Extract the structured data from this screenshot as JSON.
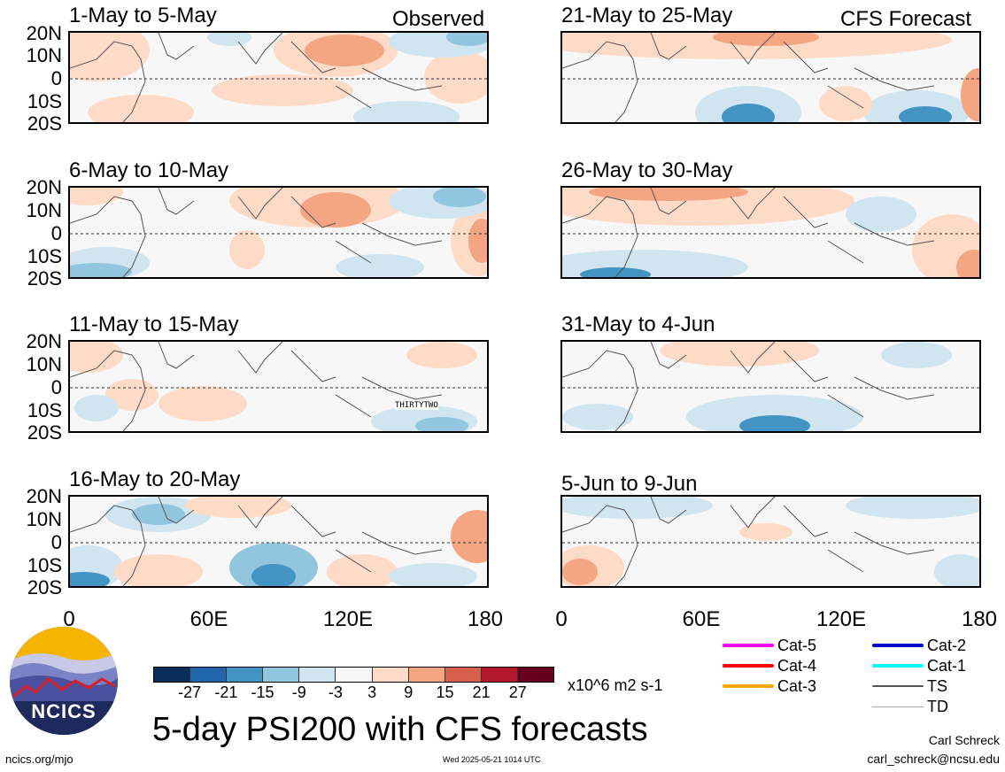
{
  "panels_left": [
    {
      "period": "1-May to 5-May",
      "label_right": "Observed"
    },
    {
      "period": "6-May to 10-May",
      "label_right": ""
    },
    {
      "period": "11-May to 15-May",
      "label_right": "",
      "annotation": "THIRTYTWO"
    },
    {
      "period": "16-May to 20-May",
      "label_right": ""
    }
  ],
  "panels_right": [
    {
      "period": "21-May to 25-May",
      "label_right": "CFS Forecast"
    },
    {
      "period": "26-May to 30-May",
      "label_right": ""
    },
    {
      "period": "31-May to 4-Jun",
      "label_right": ""
    },
    {
      "period": "5-Jun to 9-Jun",
      "label_right": ""
    }
  ],
  "lat_labels": [
    "20N",
    "10N",
    "0",
    "10S",
    "20S"
  ],
  "lon_labels": [
    "0",
    "60E",
    "120E",
    "180"
  ],
  "colorbar": {
    "ticks": [
      "-27",
      "-21",
      "-15",
      "-9",
      "-3",
      "3",
      "9",
      "15",
      "21",
      "27"
    ],
    "colors": [
      "#0b2e5a",
      "#2166ac",
      "#4393c3",
      "#92c5de",
      "#d1e5f0",
      "#f7f7f7",
      "#fddbc7",
      "#f4a582",
      "#d6604d",
      "#b2182b",
      "#67001f"
    ],
    "units": "x10^6 m2 s-1"
  },
  "main_title": "5-day PSI200 with CFS forecasts",
  "storm_legend": [
    {
      "label": "Cat-5",
      "color": "#ff00ff"
    },
    {
      "label": "Cat-4",
      "color": "#ff0000"
    },
    {
      "label": "Cat-3",
      "color": "#ffa500"
    },
    {
      "label": "Cat-2",
      "color": "#0000cd"
    },
    {
      "label": "Cat-1",
      "color": "#00ffff"
    },
    {
      "label": "TS",
      "color": "#555555"
    },
    {
      "label": "TD",
      "color": "#aaaaaa"
    }
  ],
  "logo_text": "NCICS",
  "footer": {
    "left": "ncics.org/mjo",
    "center": "Wed 2025-05-21 1014 UTC",
    "author": "Carl Schreck",
    "email": "carl_schreck@ncsu.edu"
  }
}
